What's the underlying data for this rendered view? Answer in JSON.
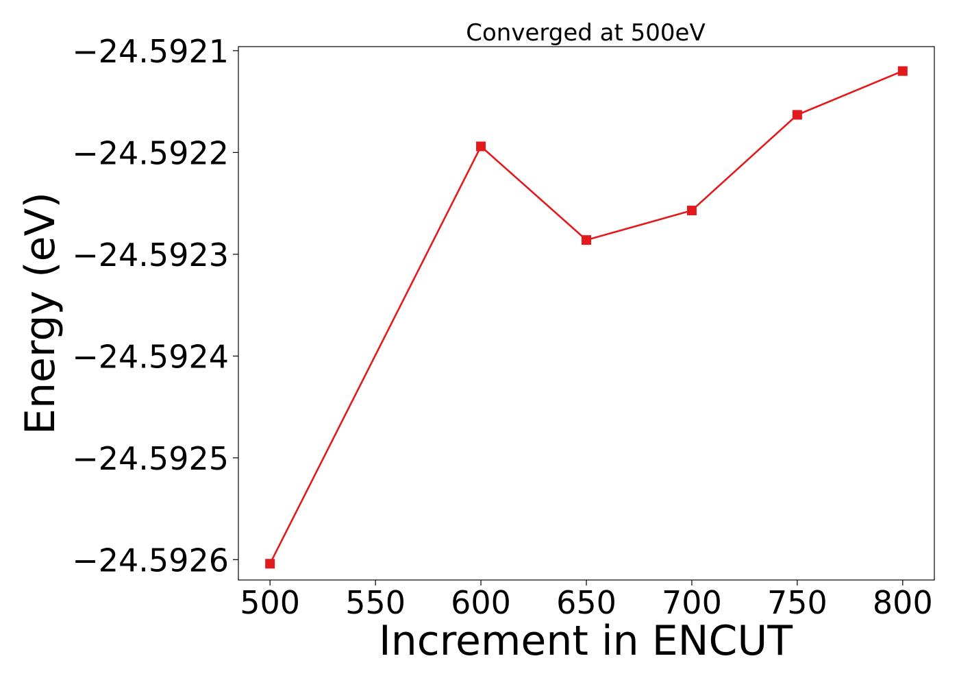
{
  "chart_data": {
    "type": "line",
    "title": "Converged at 500eV",
    "xlabel": "Increment in ENCUT",
    "ylabel": "Energy (eV)",
    "x": [
      500,
      600,
      650,
      700,
      750,
      800
    ],
    "xlim": [
      485,
      815
    ],
    "ylim": [
      -24.59262,
      -24.592096
    ],
    "xticks": [
      500,
      550,
      600,
      650,
      700,
      750,
      800
    ],
    "xtick_labels": [
      "500",
      "550",
      "600",
      "650",
      "700",
      "750",
      "800"
    ],
    "yticks": [
      -24.5921,
      -24.5922,
      -24.5923,
      -24.5924,
      -24.5925,
      -24.5926
    ],
    "ytick_labels": [
      "−24.5921",
      "−24.5922",
      "−24.5923",
      "−24.5924",
      "−24.5925",
      "−24.5926"
    ],
    "grid": false,
    "series": [
      {
        "values": [
          -24.592604,
          -24.592194,
          -24.592286,
          -24.592257,
          -24.592163,
          -24.59212
        ],
        "color": "#e31a1c",
        "marker": "square"
      }
    ]
  }
}
